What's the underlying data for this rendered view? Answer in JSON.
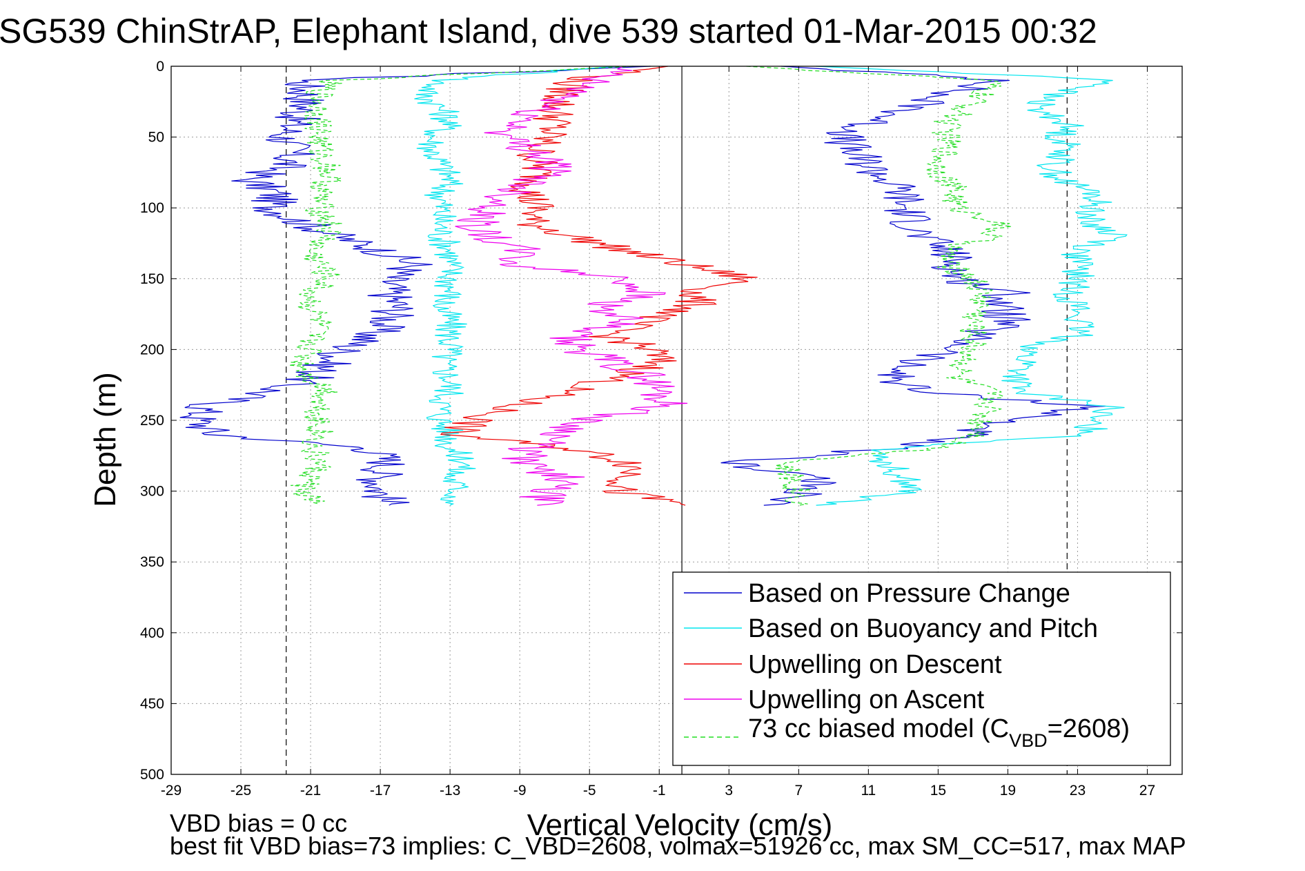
{
  "chart_data": {
    "type": "line",
    "title": "SG539 ChinStrAP, Elephant Island, dive 539 started 01-Mar-2015 00:32",
    "xlabel": "Vertical Velocity (cm/s)",
    "ylabel": "Depth (m)",
    "xlim": [
      -29,
      29
    ],
    "ylim": [
      0,
      500
    ],
    "y_reversed": true,
    "grid": true,
    "xticks": [
      -29,
      -25,
      -21,
      -17,
      -13,
      -9,
      -5,
      -1,
      3,
      7,
      11,
      15,
      19,
      23,
      27
    ],
    "yticks": [
      0,
      50,
      100,
      150,
      200,
      250,
      300,
      350,
      400,
      450,
      500
    ],
    "reference_lines": {
      "solid_vertical_x": 0.3,
      "dashed_vertical_x": [
        -22.4,
        22.4
      ]
    },
    "legend": {
      "location": "bottom-right",
      "entries": [
        {
          "series": 0,
          "text": "Based on Pressure Change"
        },
        {
          "series": 1,
          "text": "Based on Buoyancy and Pitch"
        },
        {
          "series": 2,
          "text": "Upwelling on Descent"
        },
        {
          "series": 3,
          "text": "Upwelling on Ascent"
        },
        {
          "series": 4,
          "text_before": "73 cc biased model (C",
          "subscript": "VBD",
          "text_after": "=2608)"
        }
      ]
    },
    "depths": [
      0,
      10,
      20,
      30,
      40,
      50,
      60,
      70,
      80,
      90,
      100,
      110,
      120,
      130,
      140,
      150,
      160,
      170,
      180,
      190,
      200,
      210,
      220,
      230,
      240,
      250,
      260,
      270,
      280,
      290,
      300,
      310
    ],
    "series": [
      {
        "name": "Based on Pressure Change",
        "color": "#0000cc",
        "style": "solid",
        "descent": [
          -1.5,
          -21.5,
          -21.2,
          -21.4,
          -22.0,
          -22.5,
          -22.0,
          -22.4,
          -24.5,
          -23.0,
          -23.2,
          -21.5,
          -19.5,
          -17.0,
          -15.0,
          -16.5,
          -16.5,
          -16.0,
          -16.5,
          -17.5,
          -19.0,
          -20.0,
          -21.0,
          -23.5,
          -27.0,
          -27.5,
          -26.5,
          -17.5,
          -16.5,
          -17.0,
          -17.0,
          -16.5
        ],
        "ascent": [
          6.0,
          19.0,
          15.0,
          13.5,
          11.0,
          9.5,
          10.0,
          11.0,
          12.0,
          13.0,
          13.0,
          13.5,
          14.0,
          15.5,
          16.0,
          16.0,
          19.0,
          18.5,
          19.0,
          17.0,
          16.0,
          13.0,
          12.5,
          14.0,
          24.0,
          19.0,
          16.5,
          12.0,
          3.0,
          8.0,
          7.5,
          5.0
        ]
      },
      {
        "name": "Based on Buoyancy and Pitch",
        "color": "#00e5ee",
        "style": "solid",
        "descent": [
          -3.5,
          -13.5,
          -14.5,
          -13.5,
          -13.0,
          -14.0,
          -14.0,
          -13.5,
          -13.0,
          -13.5,
          -13.5,
          -13.5,
          -13.5,
          -13.0,
          -13.0,
          -13.0,
          -13.0,
          -13.5,
          -13.0,
          -13.0,
          -13.0,
          -13.5,
          -13.0,
          -13.0,
          -13.5,
          -13.5,
          -13.0,
          -13.0,
          -12.0,
          -13.0,
          -12.5,
          -13.0
        ],
        "ascent": [
          8.0,
          25.5,
          21.5,
          20.5,
          22.5,
          22.0,
          22.5,
          21.5,
          22.0,
          24.0,
          24.0,
          23.5,
          25.5,
          23.0,
          23.0,
          23.0,
          22.5,
          23.0,
          23.0,
          23.0,
          20.0,
          20.0,
          19.5,
          19.5,
          25.0,
          23.5,
          24.0,
          12.0,
          12.0,
          13.0,
          13.5,
          8.0
        ]
      },
      {
        "name": "Upwelling on Descent",
        "color": "#ee0000",
        "style": "solid",
        "descent": [
          -0.5,
          -6.0,
          -6.5,
          -7.0,
          -7.0,
          -7.5,
          -8.0,
          -8.0,
          -8.0,
          -8.5,
          -8.0,
          -8.5,
          -6.0,
          -3.0,
          0.5,
          4.0,
          1.0,
          1.0,
          -2.0,
          -4.0,
          -1.5,
          -1.0,
          -3.5,
          -6.5,
          -9.5,
          -11.5,
          -13.0,
          -6.0,
          -2.5,
          -2.5,
          -3.5,
          0.5
        ],
        "ascent": []
      },
      {
        "name": "Upwelling on Ascent",
        "color": "#ee00ee",
        "style": "solid",
        "descent": [],
        "ascent": [
          -3.0,
          -5.0,
          -6.0,
          -8.0,
          -9.0,
          -10.0,
          -8.0,
          -7.0,
          -8.0,
          -9.5,
          -10.5,
          -11.5,
          -11.0,
          -9.0,
          -9.5,
          -3.0,
          -1.5,
          -4.5,
          -3.0,
          -6.5,
          -5.5,
          -3.5,
          -1.5,
          -1.0,
          -0.5,
          -5.5,
          -6.5,
          -8.5,
          -9.0,
          -6.5,
          -7.5,
          -8.0
        ]
      },
      {
        "name": "73 cc biased model (CVBD=2608)",
        "color": "#22dd22",
        "style": "dashed",
        "descent": [
          -2.5,
          -20.0,
          -20.5,
          -20.5,
          -20.5,
          -20.5,
          -20.5,
          -20.0,
          -20.0,
          -20.5,
          -20.5,
          -20.0,
          -20.0,
          -21.0,
          -20.5,
          -20.0,
          -21.0,
          -21.0,
          -20.5,
          -21.0,
          -21.0,
          -21.5,
          -21.0,
          -20.0,
          -20.5,
          -20.5,
          -20.5,
          -21.0,
          -20.5,
          -21.0,
          -21.5,
          -20.5
        ],
        "ascent": [
          4.0,
          18.0,
          17.5,
          16.5,
          15.5,
          15.5,
          15.5,
          15.0,
          15.5,
          16.0,
          16.0,
          18.5,
          18.0,
          15.5,
          15.5,
          17.0,
          17.5,
          17.5,
          17.0,
          17.0,
          17.0,
          16.5,
          16.0,
          18.0,
          18.0,
          17.5,
          17.5,
          15.0,
          6.0,
          6.5,
          7.0,
          7.0
        ]
      }
    ]
  },
  "footer": {
    "vbd_bias": "VBD bias = 0 cc",
    "best_fit": "best fit VBD bias=73 implies: C_VBD=2608, volmax=51926 cc, max SM_CC=517, max MAP"
  }
}
